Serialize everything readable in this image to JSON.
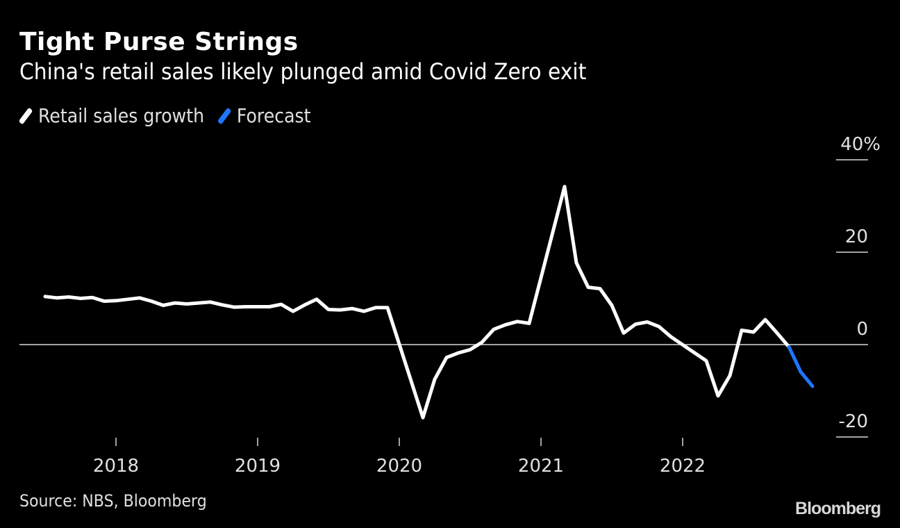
{
  "title": "Tight Purse Strings",
  "subtitle": "China's retail sales likely plunged amid Covid Zero exit",
  "legend": [
    {
      "label": "Retail sales growth",
      "color": "#ffffff"
    },
    {
      "label": "Forecast",
      "color": "#1f75fe"
    }
  ],
  "source": "Source: NBS, Bloomberg",
  "brand": "Bloomberg",
  "chart_data": {
    "type": "line",
    "title": "Tight Purse Strings",
    "subtitle": "China's retail sales likely plunged amid Covid Zero exit",
    "xlabel": "",
    "ylabel": "",
    "ylim": [
      -20,
      40
    ],
    "yticks": [
      {
        "value": 40,
        "label": "40%"
      },
      {
        "value": 20,
        "label": "20"
      },
      {
        "value": 0,
        "label": "0"
      },
      {
        "value": -20,
        "label": "-20"
      }
    ],
    "xticks": [
      {
        "date": "2018-01",
        "label": "2018"
      },
      {
        "date": "2019-01",
        "label": "2019"
      },
      {
        "date": "2020-01",
        "label": "2020"
      },
      {
        "date": "2021-01",
        "label": "2021"
      },
      {
        "date": "2022-01",
        "label": "2022"
      }
    ],
    "xlim": [
      "2017-06",
      "2023-02"
    ],
    "grid": false,
    "zero_line": true,
    "legend_position": "top-left",
    "series": [
      {
        "name": "Retail sales growth",
        "color": "#ffffff",
        "points": [
          [
            "2017-07",
            10.4
          ],
          [
            "2017-08",
            10.1
          ],
          [
            "2017-09",
            10.3
          ],
          [
            "2017-10",
            10.0
          ],
          [
            "2017-11",
            10.2
          ],
          [
            "2017-12",
            9.4
          ],
          [
            "2018-01",
            9.5
          ],
          [
            "2018-02",
            9.8
          ],
          [
            "2018-03",
            10.1
          ],
          [
            "2018-04",
            9.4
          ],
          [
            "2018-05",
            8.5
          ],
          [
            "2018-06",
            9.0
          ],
          [
            "2018-07",
            8.8
          ],
          [
            "2018-08",
            9.0
          ],
          [
            "2018-09",
            9.2
          ],
          [
            "2018-10",
            8.6
          ],
          [
            "2018-11",
            8.1
          ],
          [
            "2018-12",
            8.2
          ],
          [
            "2019-01",
            8.2
          ],
          [
            "2019-02",
            8.2
          ],
          [
            "2019-03",
            8.7
          ],
          [
            "2019-04",
            7.2
          ],
          [
            "2019-05",
            8.6
          ],
          [
            "2019-06",
            9.8
          ],
          [
            "2019-07",
            7.6
          ],
          [
            "2019-08",
            7.5
          ],
          [
            "2019-09",
            7.8
          ],
          [
            "2019-10",
            7.2
          ],
          [
            "2019-11",
            8.0
          ],
          [
            "2019-12",
            8.0
          ],
          [
            "2020-03",
            -15.8
          ],
          [
            "2020-04",
            -7.5
          ],
          [
            "2020-05",
            -2.8
          ],
          [
            "2020-06",
            -1.8
          ],
          [
            "2020-07",
            -1.1
          ],
          [
            "2020-08",
            0.5
          ],
          [
            "2020-09",
            3.3
          ],
          [
            "2020-10",
            4.3
          ],
          [
            "2020-11",
            5.0
          ],
          [
            "2020-12",
            4.6
          ],
          [
            "2021-03",
            34.2
          ],
          [
            "2021-04",
            17.7
          ],
          [
            "2021-05",
            12.4
          ],
          [
            "2021-06",
            12.1
          ],
          [
            "2021-07",
            8.5
          ],
          [
            "2021-08",
            2.5
          ],
          [
            "2021-09",
            4.4
          ],
          [
            "2021-10",
            4.9
          ],
          [
            "2021-11",
            3.9
          ],
          [
            "2021-12",
            1.7
          ],
          [
            "2022-03",
            -3.5
          ],
          [
            "2022-04",
            -11.1
          ],
          [
            "2022-05",
            -6.7
          ],
          [
            "2022-06",
            3.1
          ],
          [
            "2022-07",
            2.7
          ],
          [
            "2022-08",
            5.4
          ],
          [
            "2022-09",
            2.5
          ],
          [
            "2022-10",
            -0.5
          ]
        ]
      },
      {
        "name": "Forecast",
        "color": "#1f75fe",
        "points": [
          [
            "2022-10",
            -0.5
          ],
          [
            "2022-11",
            -5.9
          ],
          [
            "2022-12",
            -9.0
          ]
        ]
      }
    ]
  }
}
